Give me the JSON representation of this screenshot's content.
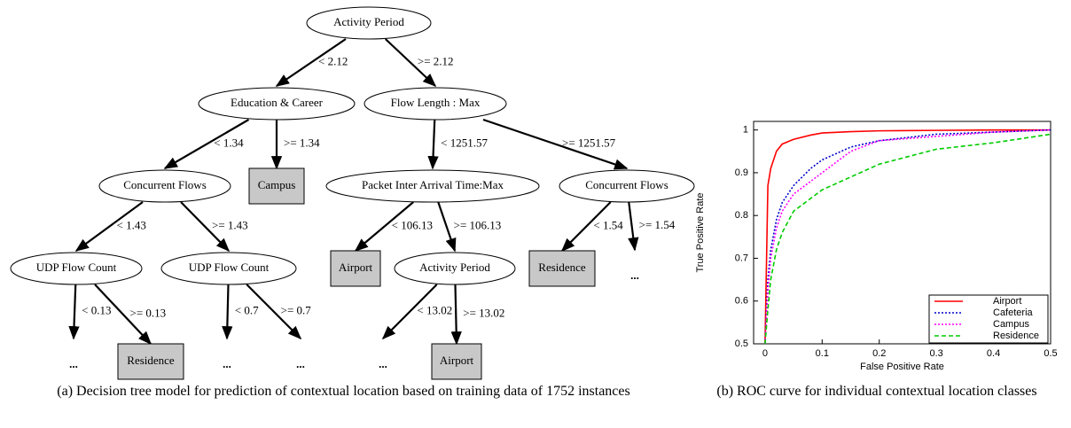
{
  "tree": {
    "nodes": [
      {
        "label": "Activity Period",
        "shape": "ellipse"
      },
      {
        "label": "Education & Career",
        "shape": "ellipse"
      },
      {
        "label": "Flow Length : Max",
        "shape": "ellipse"
      },
      {
        "label": "Concurrent Flows",
        "shape": "ellipse"
      },
      {
        "label": "Campus",
        "shape": "box"
      },
      {
        "label": "Packet Inter Arrival Time:Max",
        "shape": "ellipse"
      },
      {
        "label": "Concurrent Flows",
        "shape": "ellipse"
      },
      {
        "label": "UDP Flow Count",
        "shape": "ellipse"
      },
      {
        "label": "UDP Flow Count",
        "shape": "ellipse"
      },
      {
        "label": "Airport",
        "shape": "box"
      },
      {
        "label": "Activity Period",
        "shape": "ellipse"
      },
      {
        "label": "Residence",
        "shape": "box"
      },
      {
        "label": "...",
        "shape": "dots"
      },
      {
        "label": "...",
        "shape": "dots"
      },
      {
        "label": "Residence",
        "shape": "box"
      },
      {
        "label": "...",
        "shape": "dots"
      },
      {
        "label": "...",
        "shape": "dots"
      },
      {
        "label": "...",
        "shape": "dots"
      },
      {
        "label": "Airport",
        "shape": "box"
      }
    ],
    "edges": [
      "< 2.12",
      ">= 2.12",
      "< 1.34",
      ">= 1.34",
      "< 1251.57",
      ">= 1251.57",
      "< 1.43",
      ">= 1.43",
      "< 106.13",
      ">= 106.13",
      "< 1.54",
      ">= 1.54",
      "< 0.13",
      ">= 0.13",
      "< 0.7",
      ">= 0.7",
      "< 13.02",
      ">= 13.02"
    ]
  },
  "chart_data": {
    "type": "line",
    "x_label": "False Positive Rate",
    "y_label": "True Positive Rate",
    "x": [
      0,
      0.005,
      0.01,
      0.02,
      0.03,
      0.05,
      0.08,
      0.1,
      0.15,
      0.2,
      0.3,
      0.4,
      0.5
    ],
    "series": [
      {
        "name": "Airport",
        "color": "#ff0000",
        "dash": "solid",
        "values": [
          0.5,
          0.87,
          0.91,
          0.95,
          0.967,
          0.978,
          0.988,
          0.993,
          0.996,
          0.998,
          0.999,
          1,
          1
        ]
      },
      {
        "name": "Cafeteria",
        "color": "#0000cc",
        "dash": "dotted",
        "values": [
          0.5,
          0.65,
          0.72,
          0.79,
          0.83,
          0.87,
          0.91,
          0.93,
          0.96,
          0.975,
          0.99,
          0.995,
          1
        ]
      },
      {
        "name": "Campus",
        "color": "#ff00ff",
        "dash": "dotted",
        "values": [
          0.5,
          0.62,
          0.7,
          0.77,
          0.81,
          0.85,
          0.88,
          0.9,
          0.95,
          0.975,
          0.985,
          0.995,
          1
        ]
      },
      {
        "name": "Residence",
        "color": "#00cc00",
        "dash": "dashed",
        "values": [
          0.5,
          0.58,
          0.65,
          0.72,
          0.76,
          0.81,
          0.84,
          0.86,
          0.89,
          0.92,
          0.955,
          0.97,
          0.99
        ]
      }
    ],
    "xlim": [
      -0.02,
      0.5
    ],
    "ylim": [
      0.5,
      1.02
    ],
    "xticks": [
      0,
      0.1,
      0.2,
      0.3,
      0.4,
      0.5
    ],
    "yticks": [
      0.5,
      0.6,
      0.7,
      0.8,
      0.9,
      1
    ],
    "legend": "lower-right"
  },
  "captions": [
    "(a) Decision tree model for prediction of contextual location based on training data of 1752 instances",
    "(b) ROC curve for individual contextual location classes"
  ]
}
